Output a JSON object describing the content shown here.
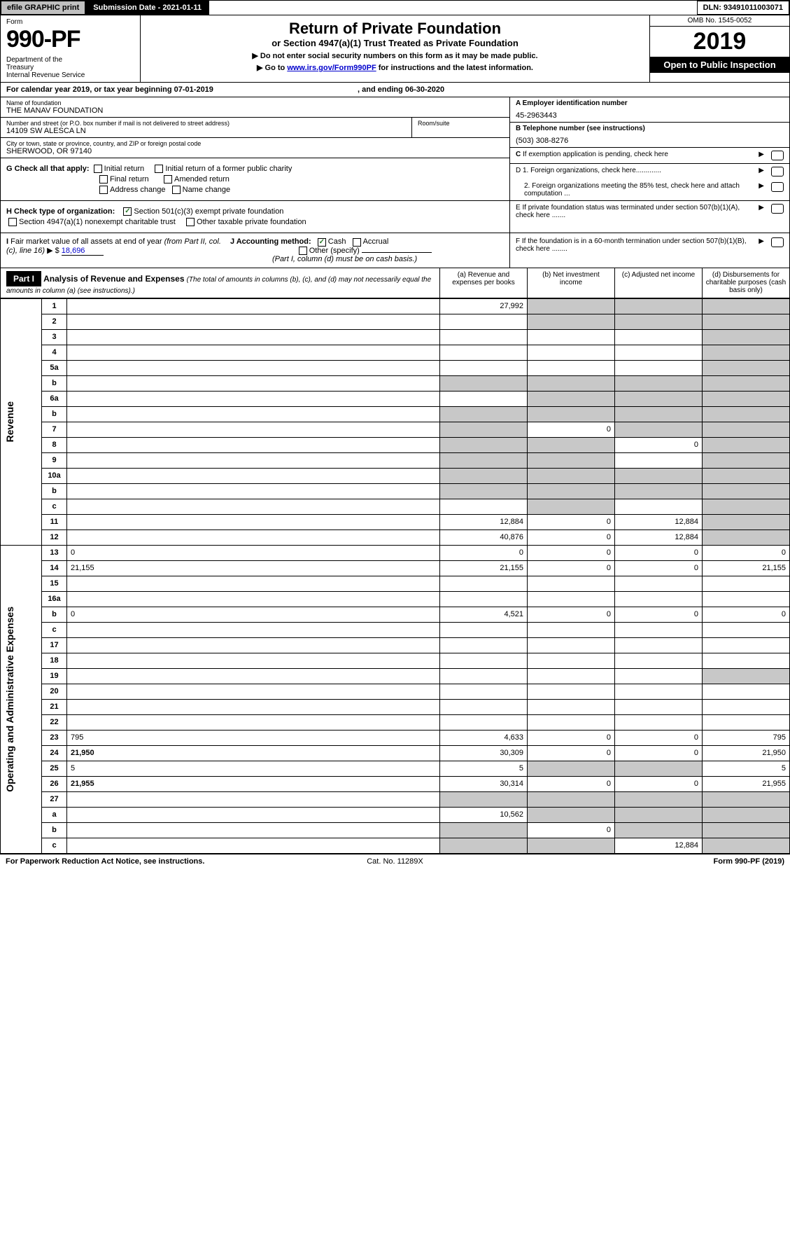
{
  "topbar": {
    "efile": "efile GRAPHIC print",
    "submission": "Submission Date - 2021-01-11",
    "dln": "DLN: 93491011003071"
  },
  "header": {
    "form_label": "Form",
    "form_number": "990-PF",
    "dept": "Department of the Treasury\nInternal Revenue Service",
    "title": "Return of Private Foundation",
    "subtitle": "or Section 4947(a)(1) Trust Treated as Private Foundation",
    "note1": "▶ Do not enter social security numbers on this form as it may be made public.",
    "note2": "▶ Go to ",
    "link": "www.irs.gov/Form990PF",
    "note2b": " for instructions and the latest information.",
    "omb": "OMB No. 1545-0052",
    "year": "2019",
    "inspect": "Open to Public Inspection"
  },
  "calyear": "For calendar year 2019, or tax year beginning 07-01-2019",
  "calyear_end": ", and ending 06-30-2020",
  "foundation": {
    "name_label": "Name of foundation",
    "name": "THE MANAV FOUNDATION",
    "addr_label": "Number and street (or P.O. box number if mail is not delivered to street address)",
    "addr": "14109 SW ALESCA LN",
    "room_label": "Room/suite",
    "city_label": "City or town, state or province, country, and ZIP or foreign postal code",
    "city": "SHERWOOD, OR  97140"
  },
  "right_info": {
    "a_label": "A Employer identification number",
    "a_val": "45-2963443",
    "b_label": "B Telephone number (see instructions)",
    "b_val": "(503) 308-8276",
    "c_label": "C If exemption application is pending, check here",
    "d1": "D 1. Foreign organizations, check here.............",
    "d2": "2. Foreign organizations meeting the 85% test, check here and attach computation ...",
    "e": "E  If private foundation status was terminated under section 507(b)(1)(A), check here .......",
    "f": "F  If the foundation is in a 60-month termination under section 507(b)(1)(B), check here ........"
  },
  "g": {
    "label": "G Check all that apply:",
    "opts": [
      "Initial return",
      "Initial return of a former public charity",
      "Final return",
      "Amended return",
      "Address change",
      "Name change"
    ]
  },
  "h": {
    "label": "H Check type of organization:",
    "opt1": "Section 501(c)(3) exempt private foundation",
    "opt2": "Section 4947(a)(1) nonexempt charitable trust",
    "opt3": "Other taxable private foundation"
  },
  "i": {
    "label": "I Fair market value of all assets at end of year (from Part II, col. (c), line 16) ▶ $",
    "val": "18,696"
  },
  "j": {
    "label": "J Accounting method:",
    "cash": "Cash",
    "accrual": "Accrual",
    "other": "Other (specify)",
    "note": "(Part I, column (d) must be on cash basis.)"
  },
  "part1": {
    "label": "Part I",
    "title": "Analysis of Revenue and Expenses",
    "sub": "(The total of amounts in columns (b), (c), and (d) may not necessarily equal the amounts in column (a) (see instructions).)",
    "cols": {
      "a": "(a)   Revenue and expenses per books",
      "b": "(b)   Net investment income",
      "c": "(c)   Adjusted net income",
      "d": "(d)   Disbursements for charitable purposes (cash basis only)"
    }
  },
  "sides": {
    "revenue": "Revenue",
    "expenses": "Operating and Administrative Expenses"
  },
  "rows": [
    {
      "n": "1",
      "d": "",
      "a": "27,992",
      "b": "",
      "c": "",
      "ga": false,
      "gb": true,
      "gc": true,
      "gd": true
    },
    {
      "n": "2",
      "d": "",
      "a": "",
      "b": "",
      "c": "",
      "ga": false,
      "gb": true,
      "gc": true,
      "gd": true,
      "nobord": true
    },
    {
      "n": "3",
      "d": "",
      "a": "",
      "b": "",
      "c": "",
      "gd": true
    },
    {
      "n": "4",
      "d": "",
      "a": "",
      "b": "",
      "c": "",
      "gd": true
    },
    {
      "n": "5a",
      "d": "",
      "a": "",
      "b": "",
      "c": "",
      "gd": true
    },
    {
      "n": "b",
      "d": "",
      "a": "",
      "b": "",
      "c": "",
      "ga": true,
      "gb": true,
      "gc": true,
      "gd": true
    },
    {
      "n": "6a",
      "d": "",
      "a": "",
      "b": "",
      "c": "",
      "gb": true,
      "gc": true,
      "gd": true
    },
    {
      "n": "b",
      "d": "",
      "a": "",
      "b": "",
      "c": "",
      "ga": true,
      "gb": true,
      "gc": true,
      "gd": true
    },
    {
      "n": "7",
      "d": "",
      "a": "",
      "b": "0",
      "c": "",
      "ga": true,
      "gc": true,
      "gd": true
    },
    {
      "n": "8",
      "d": "",
      "a": "",
      "b": "",
      "c": "0",
      "ga": true,
      "gb": true,
      "gd": true
    },
    {
      "n": "9",
      "d": "",
      "a": "",
      "b": "",
      "c": "",
      "ga": true,
      "gb": true,
      "gd": true
    },
    {
      "n": "10a",
      "d": "",
      "a": "",
      "b": "",
      "c": "",
      "ga": true,
      "gb": true,
      "gc": true,
      "gd": true
    },
    {
      "n": "b",
      "d": "",
      "a": "",
      "b": "",
      "c": "",
      "ga": true,
      "gb": true,
      "gc": true,
      "gd": true
    },
    {
      "n": "c",
      "d": "",
      "a": "",
      "b": "",
      "c": "",
      "gb": true,
      "gd": true
    },
    {
      "n": "11",
      "d": "",
      "a": "12,884",
      "b": "0",
      "c": "12,884",
      "gd": true
    },
    {
      "n": "12",
      "d": "",
      "a": "40,876",
      "b": "0",
      "c": "12,884",
      "gd": true,
      "bold": true
    },
    {
      "n": "13",
      "d": "0",
      "a": "0",
      "b": "0",
      "c": "0"
    },
    {
      "n": "14",
      "d": "21,155",
      "a": "21,155",
      "b": "0",
      "c": "0"
    },
    {
      "n": "15",
      "d": "",
      "a": "",
      "b": "",
      "c": ""
    },
    {
      "n": "16a",
      "d": "",
      "a": "",
      "b": "",
      "c": ""
    },
    {
      "n": "b",
      "d": "0",
      "a": "4,521",
      "b": "0",
      "c": "0"
    },
    {
      "n": "c",
      "d": "",
      "a": "",
      "b": "",
      "c": ""
    },
    {
      "n": "17",
      "d": "",
      "a": "",
      "b": "",
      "c": ""
    },
    {
      "n": "18",
      "d": "",
      "a": "",
      "b": "",
      "c": ""
    },
    {
      "n": "19",
      "d": "",
      "a": "",
      "b": "",
      "c": "",
      "gd": true
    },
    {
      "n": "20",
      "d": "",
      "a": "",
      "b": "",
      "c": ""
    },
    {
      "n": "21",
      "d": "",
      "a": "",
      "b": "",
      "c": ""
    },
    {
      "n": "22",
      "d": "",
      "a": "",
      "b": "",
      "c": ""
    },
    {
      "n": "23",
      "d": "795",
      "a": "4,633",
      "b": "0",
      "c": "0"
    },
    {
      "n": "24",
      "d": "21,950",
      "a": "30,309",
      "b": "0",
      "c": "0",
      "bold": true
    },
    {
      "n": "25",
      "d": "5",
      "a": "5",
      "b": "",
      "c": "",
      "gb": true,
      "gc": true
    },
    {
      "n": "26",
      "d": "21,955",
      "a": "30,314",
      "b": "0",
      "c": "0",
      "bold": true
    },
    {
      "n": "27",
      "d": "",
      "a": "",
      "b": "",
      "c": "",
      "ga": true,
      "gb": true,
      "gc": true,
      "gd": true
    },
    {
      "n": "a",
      "d": "",
      "a": "10,562",
      "b": "",
      "c": "",
      "gb": true,
      "gc": true,
      "gd": true,
      "bold": true
    },
    {
      "n": "b",
      "d": "",
      "a": "",
      "b": "0",
      "c": "",
      "ga": true,
      "gc": true,
      "gd": true,
      "bold": true
    },
    {
      "n": "c",
      "d": "",
      "a": "",
      "b": "",
      "c": "12,884",
      "ga": true,
      "gb": true,
      "gd": true,
      "bold": true
    }
  ],
  "footer": {
    "l": "For Paperwork Reduction Act Notice, see instructions.",
    "c": "Cat. No. 11289X",
    "r": "Form 990-PF (2019)"
  },
  "colors": {
    "grey": "#c8c8c8",
    "btn": "#c0c0c0",
    "black": "#000000",
    "link": "#0000cc",
    "check": "#2a7a2a"
  }
}
